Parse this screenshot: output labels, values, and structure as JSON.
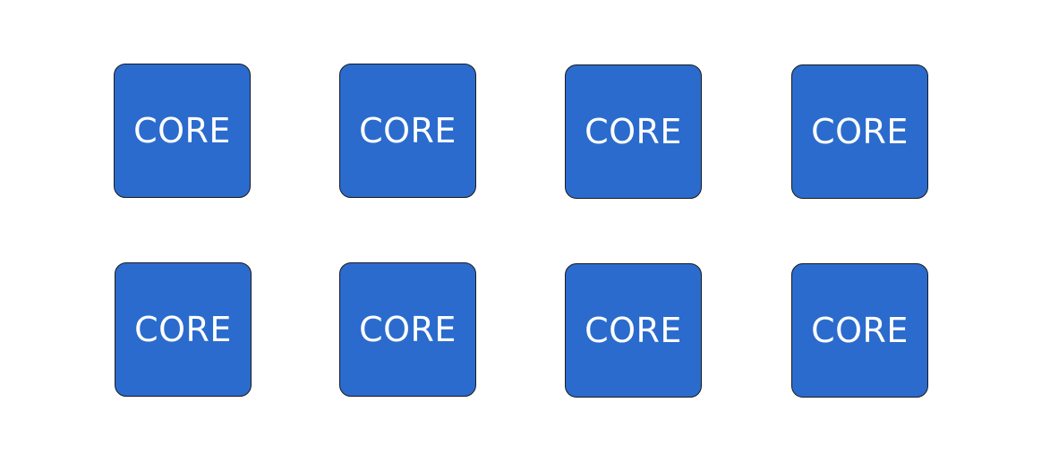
{
  "colors": {
    "core_fill": "#2b6bcd",
    "core_border": "#1b1b1b",
    "core_text": "#ffffff"
  },
  "cores": [
    {
      "label": "CORE"
    },
    {
      "label": "CORE"
    },
    {
      "label": "CORE"
    },
    {
      "label": "CORE"
    },
    {
      "label": "CORE"
    },
    {
      "label": "CORE"
    },
    {
      "label": "CORE"
    },
    {
      "label": "CORE"
    }
  ]
}
